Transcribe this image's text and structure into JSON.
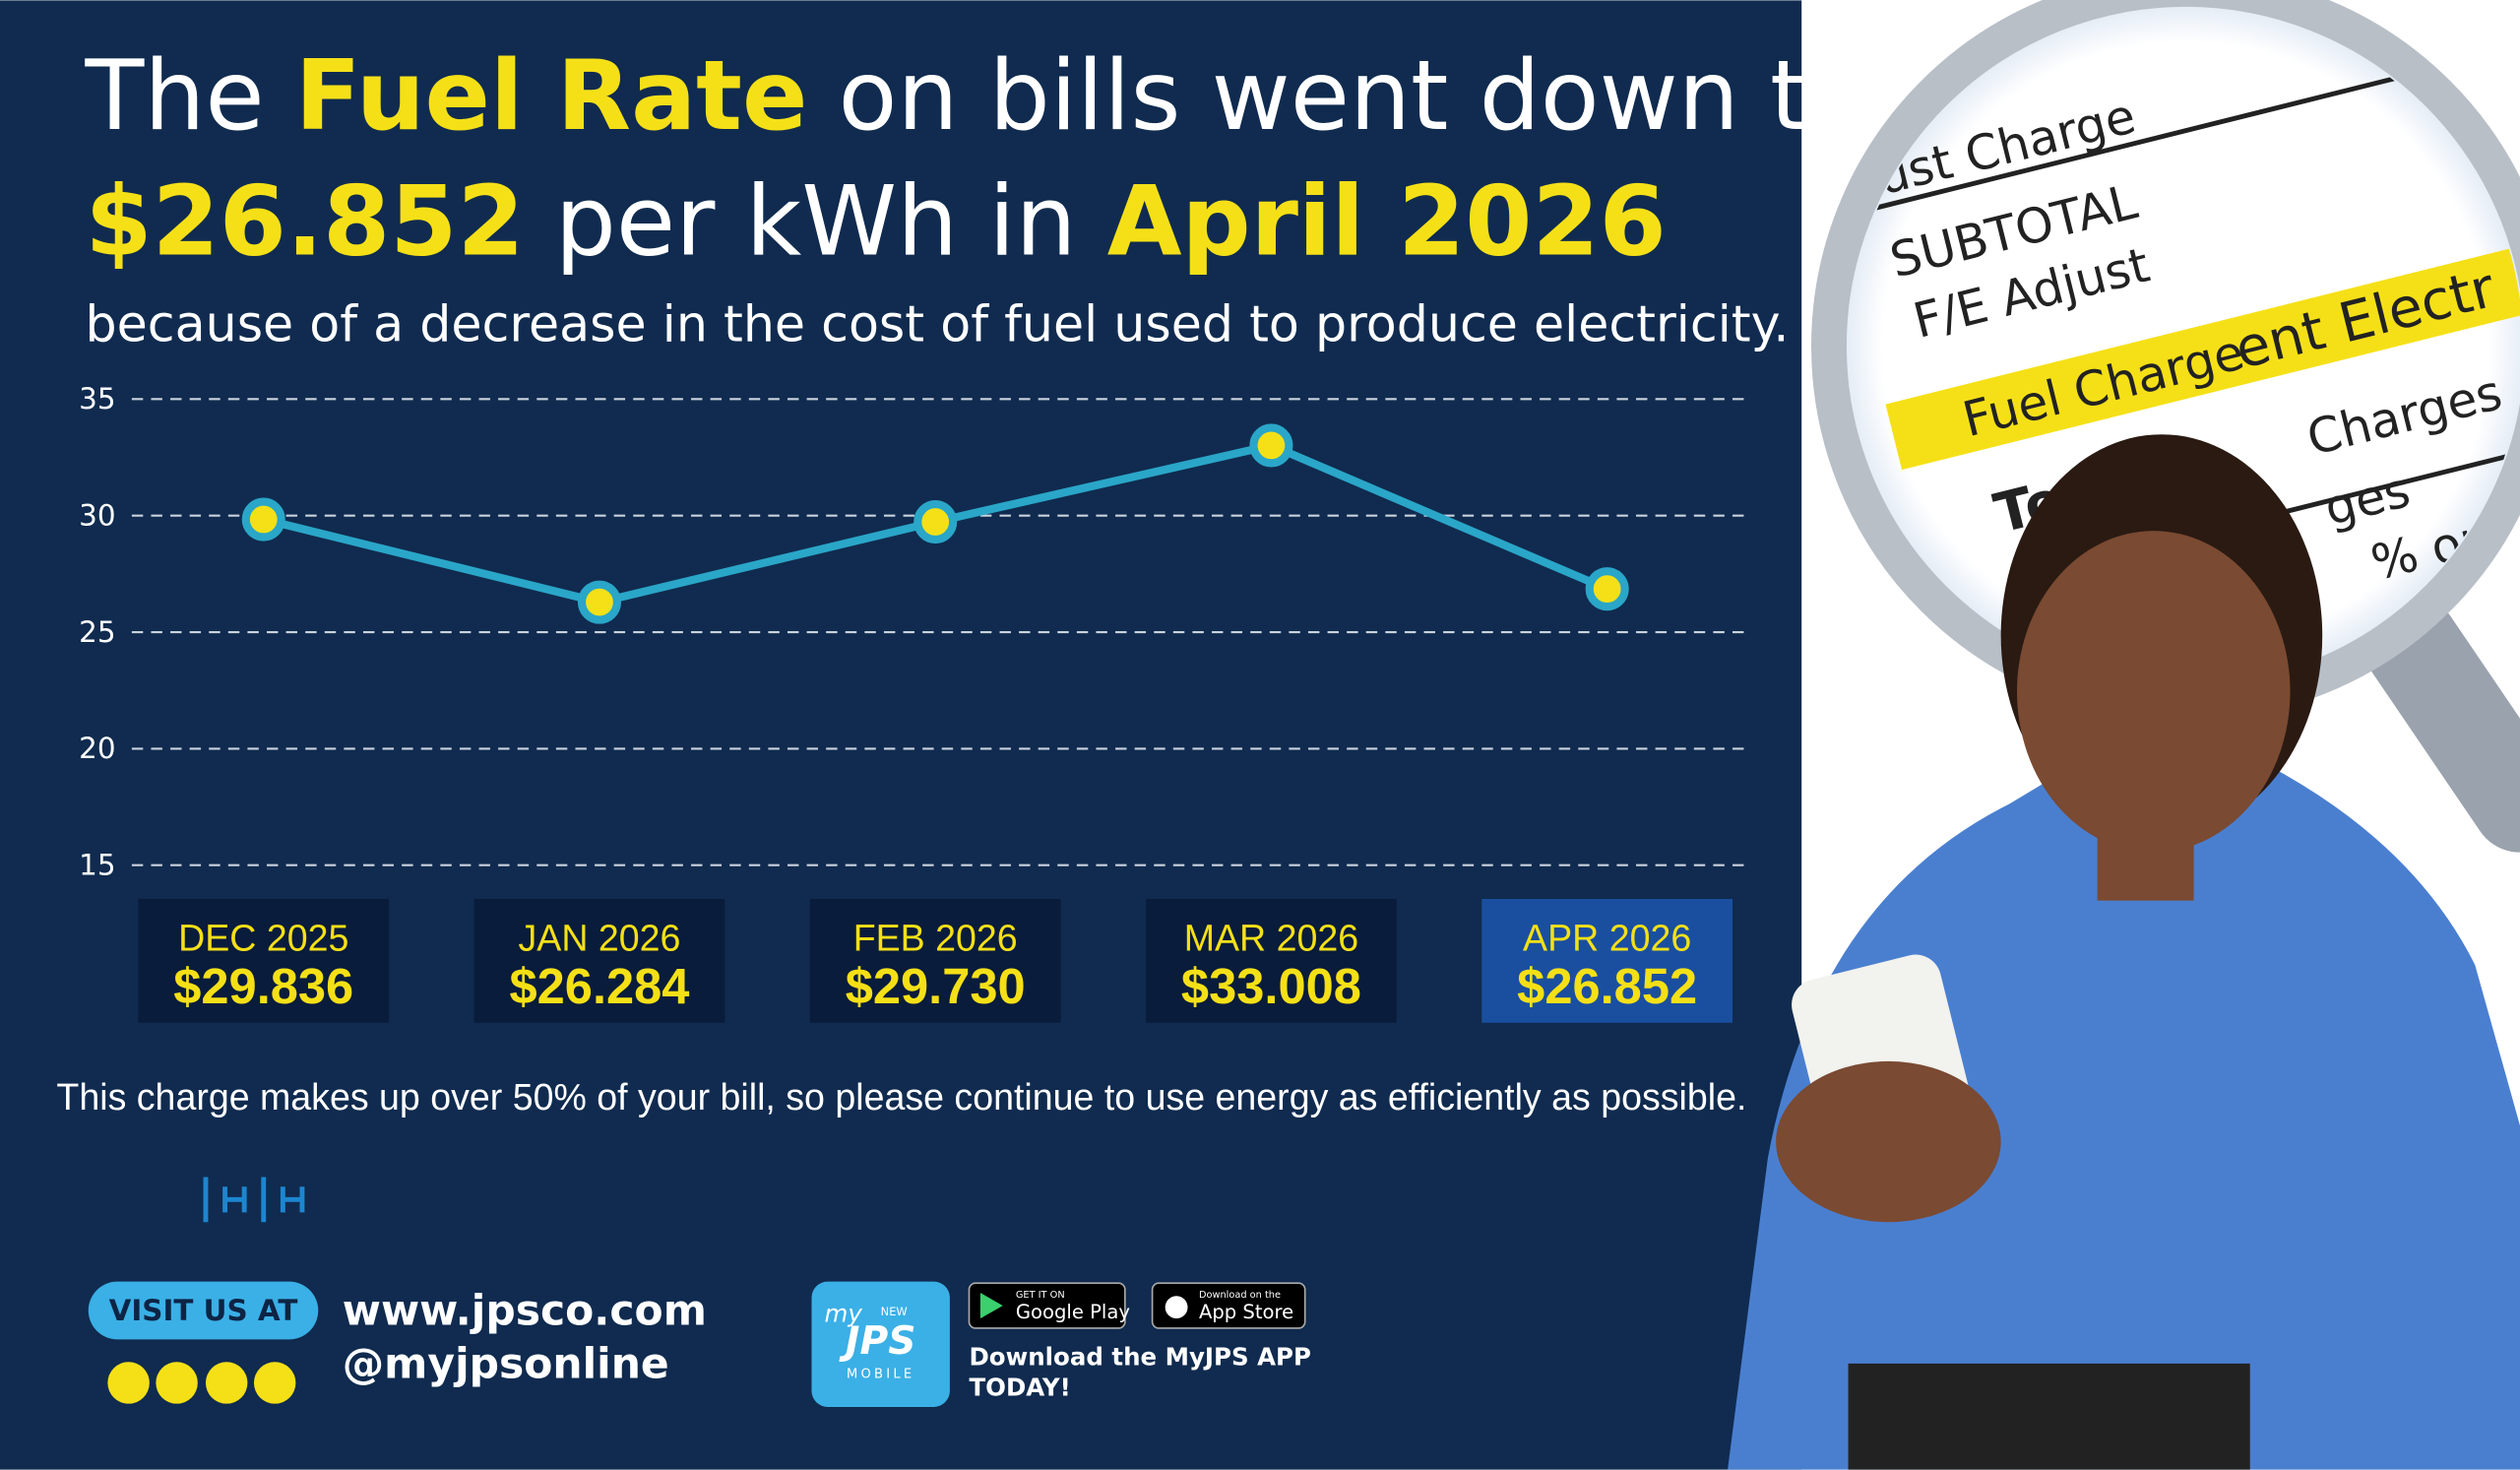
{
  "chart_data": {
    "type": "line",
    "title": [
      [
        {
          "text": "The ",
          "highlight": false
        },
        {
          "text": "Fuel Rate",
          "highlight": true
        },
        {
          "text": " on bills went down to",
          "highlight": false
        }
      ],
      [
        {
          "text": "$26.852",
          "highlight": true
        },
        {
          "text": " per kWh in ",
          "highlight": false
        },
        {
          "text": "April 2026",
          "highlight": true
        }
      ]
    ],
    "subtitle": "because of a decrease in the cost of fuel used to produce electricity.",
    "categories": [
      "DEC 2025",
      "JAN 2026",
      "FEB 2026",
      "MAR 2026",
      "APR 2026"
    ],
    "values": [
      29.836,
      26.284,
      29.73,
      33.008,
      26.852
    ],
    "value_labels": [
      "$29.836",
      "$26.284",
      "$29.730",
      "$33.008",
      "$26.852"
    ],
    "highlight_index": 4,
    "color": "#2aa6c8",
    "marker_color": "#f5e017",
    "ylim": [
      15,
      35
    ],
    "yticks": [
      15,
      20,
      25,
      30,
      35
    ],
    "grid": true
  },
  "note": "This charge makes up over 50% of your bill, so please continue to use energy as efficiently as possible.",
  "footer": {
    "visit": "VISIT US AT",
    "website": "www.jpsco.com",
    "handle": "@myjpsonline",
    "app_icon": {
      "my": "my",
      "new": "NEW",
      "name": "JPS",
      "sub": "MOBILE"
    },
    "google": {
      "small": "GET IT ON",
      "big": "Google Play"
    },
    "apple": {
      "small": "Download on the",
      "big": "App Store"
    },
    "download": [
      "Download the MyJPS APP",
      "TODAY!"
    ]
  },
  "photo": {
    "bill_lines": [
      "ust Charge",
      "SUBTOTAL",
      "F/E Adjust",
      "Fuel Charge",
      "Tot",
      "ent Electr",
      "Charges",
      "ges",
      "% on"
    ]
  }
}
